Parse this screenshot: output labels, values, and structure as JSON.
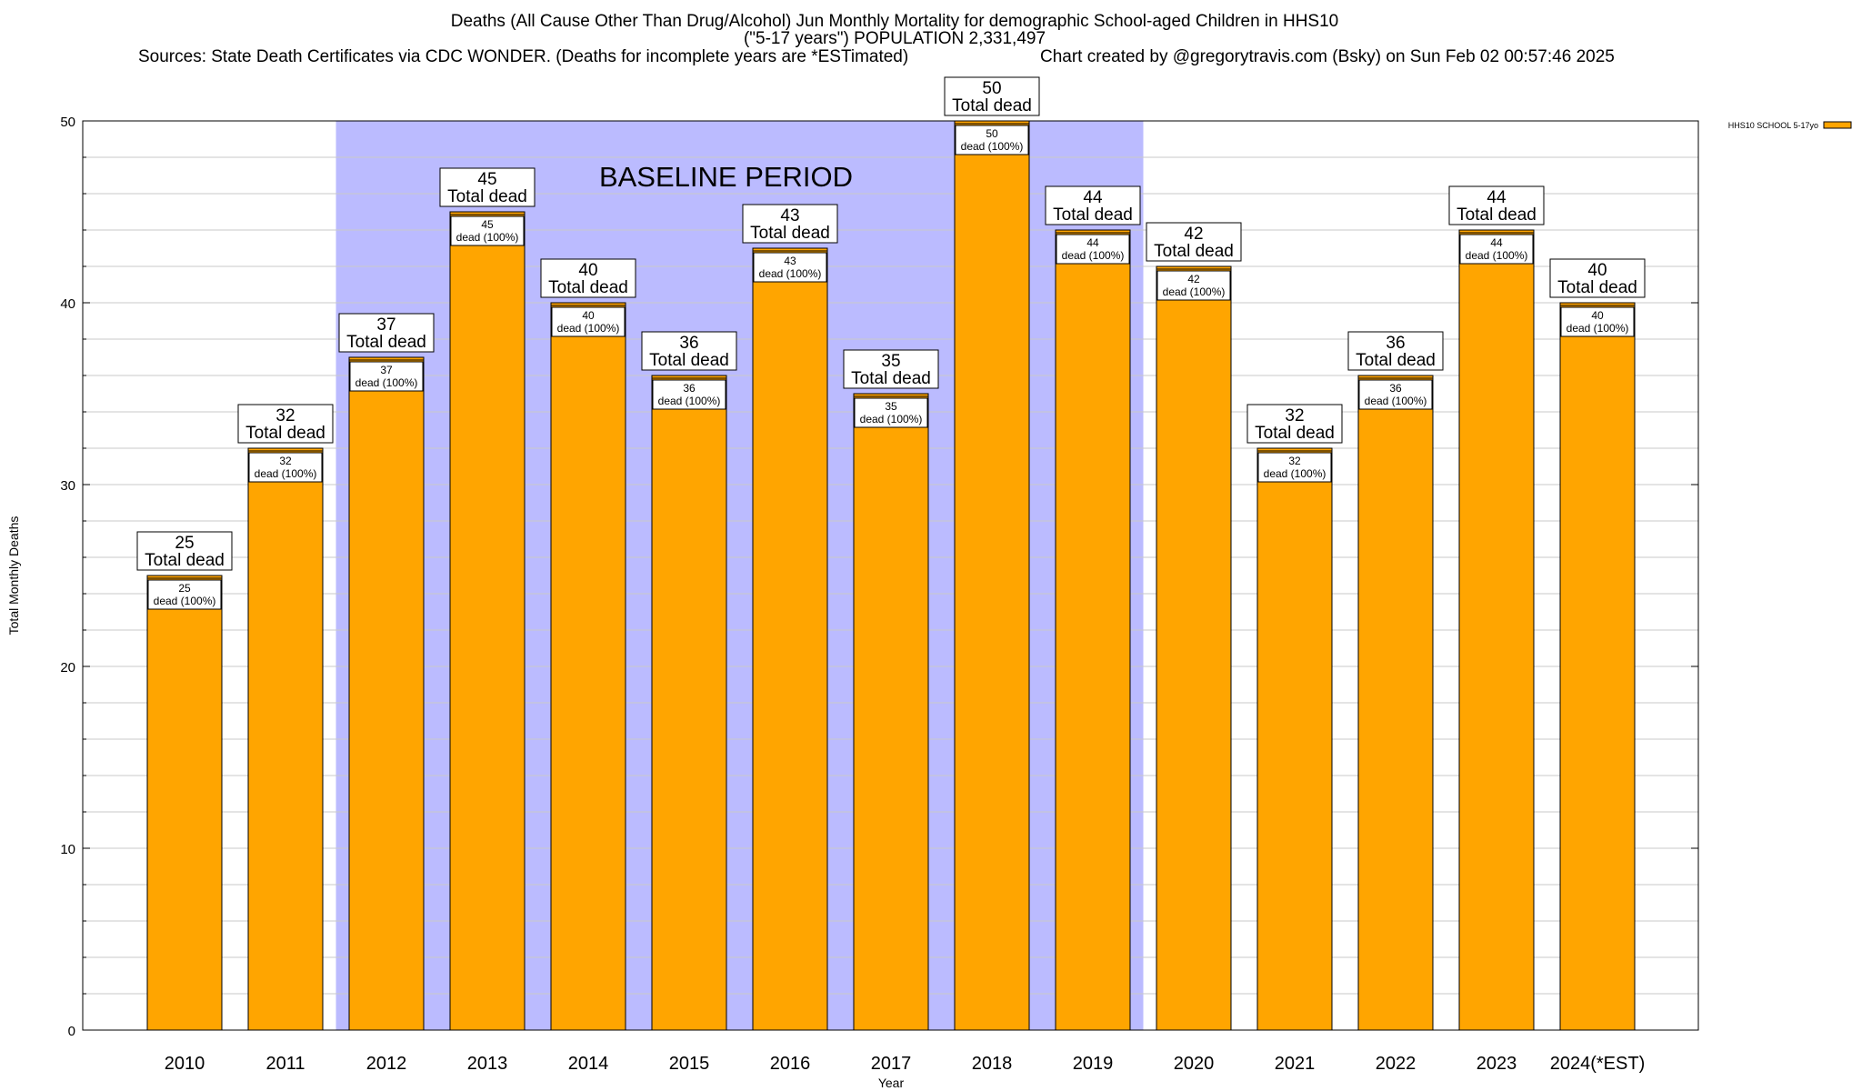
{
  "chart_title": {
    "line1": "Deaths (All Cause Other Than Drug/Alcohol) Jun Monthly Mortality for demographic School-aged Children in HHS10",
    "line2": "(\"5-17 years\") POPULATION 2,331,497",
    "sources": "Sources: State Death Certificates via CDC WONDER. (Deaths for incomplete years are *ESTimated)",
    "credit": "Chart created by @gregorytravis.com (Bsky) on Sun Feb 02 00:57:46 2025"
  },
  "chart_data": {
    "type": "bar",
    "categories": [
      "2010",
      "2011",
      "2012",
      "2013",
      "2014",
      "2015",
      "2016",
      "2017",
      "2018",
      "2019",
      "2020",
      "2021",
      "2022",
      "2023",
      "2024(*EST)"
    ],
    "series": [
      {
        "name": "HHS10 SCHOOL 5-17yo",
        "values": [
          25,
          32,
          37,
          45,
          40,
          36,
          43,
          35,
          50,
          44,
          42,
          32,
          36,
          44,
          40
        ],
        "color": "#FFA500"
      }
    ],
    "total_label_suffix": "Total dead",
    "inner_label_suffix": "dead (100%)",
    "baseline_label": "BASELINE PERIOD",
    "baseline_categories": [
      "2012",
      "2019"
    ],
    "baseline_color": "#BBBBFF",
    "xlabel": "Year",
    "ylabel": "Total Monthly Deaths",
    "ylim": [
      0,
      50
    ],
    "yticks": [
      0,
      10,
      20,
      30,
      40,
      50
    ],
    "grid": true,
    "legend_position": "top-right"
  }
}
